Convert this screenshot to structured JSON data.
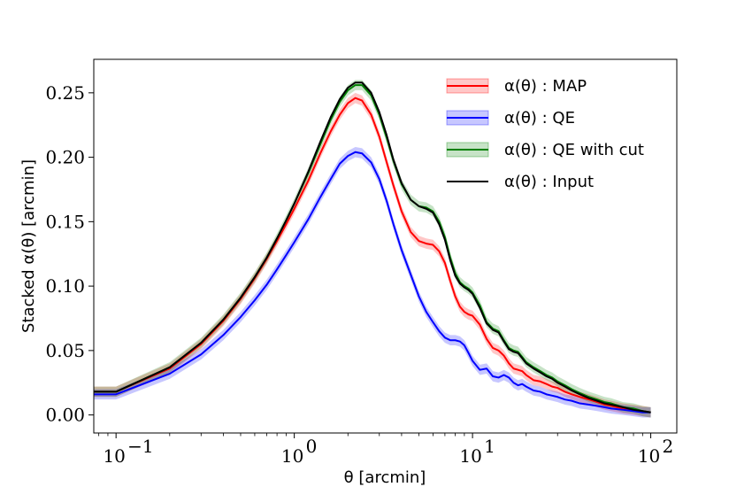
{
  "chart_data": {
    "type": "line",
    "xscale": "log",
    "xlabel": "θ [arcmin]",
    "ylabel": "Stacked α(θ) [arcmin]",
    "xlim": [
      0.075,
      140
    ],
    "ylim": [
      -0.014,
      0.276
    ],
    "x_ticks": [
      {
        "value": 0.1,
        "label": "10",
        "exp": "−1"
      },
      {
        "value": 1,
        "label": "10",
        "exp": "0"
      },
      {
        "value": 10,
        "label": "10",
        "exp": "1"
      },
      {
        "value": 100,
        "label": "10",
        "exp": "2"
      }
    ],
    "y_ticks": [
      {
        "value": 0.0,
        "label": "0.00"
      },
      {
        "value": 0.05,
        "label": "0.05"
      },
      {
        "value": 0.1,
        "label": "0.10"
      },
      {
        "value": 0.15,
        "label": "0.15"
      },
      {
        "value": 0.2,
        "label": "0.20"
      },
      {
        "value": 0.25,
        "label": "0.25"
      }
    ],
    "legend_position": "top-right",
    "x": [
      0.075,
      0.1,
      0.2,
      0.3,
      0.4,
      0.5,
      0.6,
      0.7,
      0.8,
      0.9,
      1.0,
      1.2,
      1.4,
      1.6,
      1.8,
      2.0,
      2.2,
      2.4,
      2.7,
      3.0,
      3.3,
      3.6,
      4.0,
      4.5,
      5.0,
      5.5,
      6.0,
      6.5,
      7.0,
      7.5,
      8.0,
      8.5,
      9.0,
      9.5,
      10.0,
      11.0,
      12.0,
      13.0,
      14.0,
      15.0,
      16.0,
      17.0,
      18.0,
      19.0,
      20.0,
      22.0,
      24.0,
      26.0,
      28.0,
      30.0,
      33.0,
      36.0,
      40.0,
      45.0,
      50.0,
      55.0,
      60.0,
      70.0,
      80.0,
      90.0,
      100.0
    ],
    "series": [
      {
        "name": "α(θ) : MAP",
        "color": "#ff0000",
        "band": true,
        "band_halfwidth": 0.004,
        "values": [
          0.018,
          0.018,
          0.036,
          0.055,
          0.073,
          0.09,
          0.106,
          0.121,
          0.135,
          0.148,
          0.16,
          0.182,
          0.203,
          0.22,
          0.233,
          0.242,
          0.246,
          0.244,
          0.233,
          0.216,
          0.196,
          0.178,
          0.158,
          0.142,
          0.135,
          0.133,
          0.132,
          0.127,
          0.118,
          0.104,
          0.092,
          0.084,
          0.08,
          0.078,
          0.077,
          0.07,
          0.059,
          0.052,
          0.05,
          0.046,
          0.04,
          0.036,
          0.035,
          0.034,
          0.031,
          0.027,
          0.026,
          0.024,
          0.022,
          0.021,
          0.018,
          0.016,
          0.014,
          0.012,
          0.01,
          0.008,
          0.007,
          0.005,
          0.004,
          0.003,
          0.002
        ]
      },
      {
        "name": "α(θ) : QE",
        "color": "#0000ff",
        "band": true,
        "band_halfwidth": 0.004,
        "values": [
          0.016,
          0.016,
          0.032,
          0.047,
          0.062,
          0.076,
          0.089,
          0.101,
          0.113,
          0.124,
          0.134,
          0.152,
          0.169,
          0.183,
          0.195,
          0.201,
          0.204,
          0.203,
          0.196,
          0.183,
          0.166,
          0.148,
          0.128,
          0.109,
          0.092,
          0.08,
          0.072,
          0.065,
          0.06,
          0.058,
          0.058,
          0.057,
          0.054,
          0.048,
          0.042,
          0.035,
          0.036,
          0.03,
          0.029,
          0.031,
          0.029,
          0.025,
          0.023,
          0.024,
          0.022,
          0.019,
          0.018,
          0.016,
          0.015,
          0.014,
          0.012,
          0.011,
          0.009,
          0.008,
          0.007,
          0.006,
          0.005,
          0.004,
          0.003,
          0.002,
          0.002
        ]
      },
      {
        "name": "α(θ) : QE with cut",
        "color": "#008000",
        "band": true,
        "band_halfwidth": 0.004,
        "values": [
          0.018,
          0.018,
          0.037,
          0.056,
          0.074,
          0.091,
          0.107,
          0.122,
          0.137,
          0.151,
          0.164,
          0.188,
          0.21,
          0.229,
          0.243,
          0.252,
          0.256,
          0.256,
          0.248,
          0.233,
          0.215,
          0.197,
          0.179,
          0.167,
          0.162,
          0.161,
          0.158,
          0.15,
          0.138,
          0.122,
          0.11,
          0.103,
          0.1,
          0.098,
          0.095,
          0.085,
          0.072,
          0.067,
          0.065,
          0.058,
          0.052,
          0.05,
          0.049,
          0.045,
          0.041,
          0.037,
          0.034,
          0.031,
          0.029,
          0.026,
          0.023,
          0.02,
          0.017,
          0.014,
          0.012,
          0.01,
          0.009,
          0.006,
          0.005,
          0.003,
          0.002
        ]
      },
      {
        "name": "α(θ) : Input",
        "color": "#000000",
        "band": false,
        "values": [
          0.018,
          0.018,
          0.037,
          0.056,
          0.074,
          0.091,
          0.107,
          0.122,
          0.137,
          0.151,
          0.164,
          0.189,
          0.212,
          0.231,
          0.245,
          0.254,
          0.258,
          0.258,
          0.25,
          0.235,
          0.217,
          0.198,
          0.18,
          0.167,
          0.162,
          0.16,
          0.157,
          0.148,
          0.136,
          0.12,
          0.108,
          0.102,
          0.099,
          0.097,
          0.094,
          0.083,
          0.071,
          0.066,
          0.064,
          0.057,
          0.051,
          0.049,
          0.048,
          0.044,
          0.04,
          0.036,
          0.033,
          0.03,
          0.028,
          0.025,
          0.022,
          0.019,
          0.016,
          0.013,
          0.011,
          0.009,
          0.008,
          0.006,
          0.004,
          0.003,
          0.002
        ]
      }
    ]
  }
}
